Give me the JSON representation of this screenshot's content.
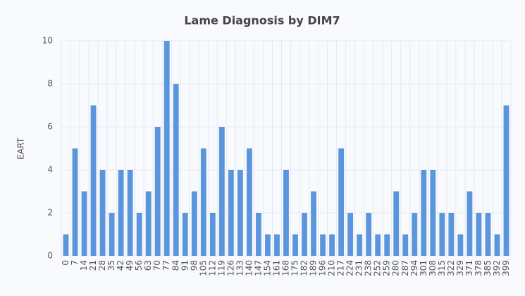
{
  "chart_data": {
    "type": "bar",
    "title": "Lame Diagnosis by DIM7",
    "y_label": "EART",
    "categories": [
      "0",
      "7",
      "14",
      "21",
      "28",
      "35",
      "42",
      "49",
      "56",
      "63",
      "70",
      "77",
      "84",
      "91",
      "98",
      "105",
      "112",
      "119",
      "126",
      "133",
      "140",
      "147",
      "154",
      "161",
      "168",
      "175",
      "182",
      "189",
      "196",
      "210",
      "217",
      "224",
      "231",
      "238",
      "252",
      "259",
      "280",
      "287",
      "294",
      "301",
      "308",
      "315",
      "322",
      "329",
      "371",
      "378",
      "385",
      "392",
      "399"
    ],
    "values": [
      1,
      5,
      3,
      7,
      4,
      2,
      4,
      4,
      2,
      3,
      6,
      10,
      8,
      2,
      3,
      5,
      2,
      6,
      4,
      4,
      5,
      2,
      1,
      1,
      4,
      1,
      2,
      3,
      1,
      1,
      5,
      2,
      1,
      2,
      1,
      1,
      3,
      1,
      2,
      4,
      4,
      2,
      2,
      1,
      3,
      2,
      2,
      1,
      7
    ],
    "color": "#5b96dc",
    "ylim": [
      0,
      10
    ],
    "yticks": [
      0,
      2,
      4,
      6,
      8,
      10
    ],
    "grid": true
  }
}
